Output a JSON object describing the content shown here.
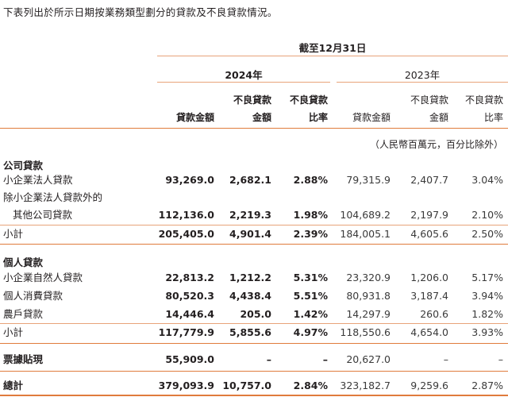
{
  "intro": "下表列出於所示日期按業務類型劃分的貸款及不良貸款情況。",
  "period_header": "截至12月31日",
  "years": {
    "current": "2024年",
    "prior": "2023年"
  },
  "columns": {
    "c1": [
      "貸款金額"
    ],
    "c2": [
      "不良貸款",
      "金額"
    ],
    "c3": [
      "不良貸款",
      "比率"
    ],
    "c4": [
      "貸款金額"
    ],
    "c5": [
      "不良貸款",
      "金額"
    ],
    "c6": [
      "不良貸款",
      "比率"
    ]
  },
  "unit_note": "（人民幣百萬元，百分比除外）",
  "sections": {
    "corporate": "公司貸款",
    "personal": "個人貸款"
  },
  "rows": {
    "sme_legal": {
      "label": "小企業法人貸款",
      "v": [
        "93,269.0",
        "2,682.1",
        "2.88%",
        "79,315.9",
        "2,407.7",
        "3.04%"
      ]
    },
    "other_corp_line1": {
      "label": "除小企業法人貸款外的"
    },
    "other_corp": {
      "label": "其他公司貸款",
      "v": [
        "112,136.0",
        "2,219.3",
        "1.98%",
        "104,689.2",
        "2,197.9",
        "2.10%"
      ]
    },
    "corp_subtotal": {
      "label": "小計",
      "v": [
        "205,405.0",
        "4,901.4",
        "2.39%",
        "184,005.1",
        "4,605.6",
        "2.50%"
      ]
    },
    "sme_natural": {
      "label": "小企業自然人貸款",
      "v": [
        "22,813.2",
        "1,212.2",
        "5.31%",
        "23,320.9",
        "1,206.0",
        "5.17%"
      ]
    },
    "consumer": {
      "label": "個人消費貸款",
      "v": [
        "80,520.3",
        "4,438.4",
        "5.51%",
        "80,931.8",
        "3,187.4",
        "3.94%"
      ]
    },
    "farmer": {
      "label": "農戶貸款",
      "v": [
        "14,446.4",
        "205.0",
        "1.42%",
        "14,297.9",
        "260.6",
        "1.82%"
      ]
    },
    "personal_subtotal": {
      "label": "小計",
      "v": [
        "117,779.9",
        "5,855.6",
        "4.97%",
        "118,550.6",
        "4,654.0",
        "3.93%"
      ]
    },
    "discounted_bills": {
      "label": "票據貼現",
      "v": [
        "55,909.0",
        "–",
        "–",
        "20,627.0",
        "–",
        "–"
      ]
    },
    "total": {
      "label": "總計",
      "v": [
        "379,093.9",
        "10,757.0",
        "2.84%",
        "323,182.7",
        "9,259.6",
        "2.87%"
      ]
    }
  }
}
